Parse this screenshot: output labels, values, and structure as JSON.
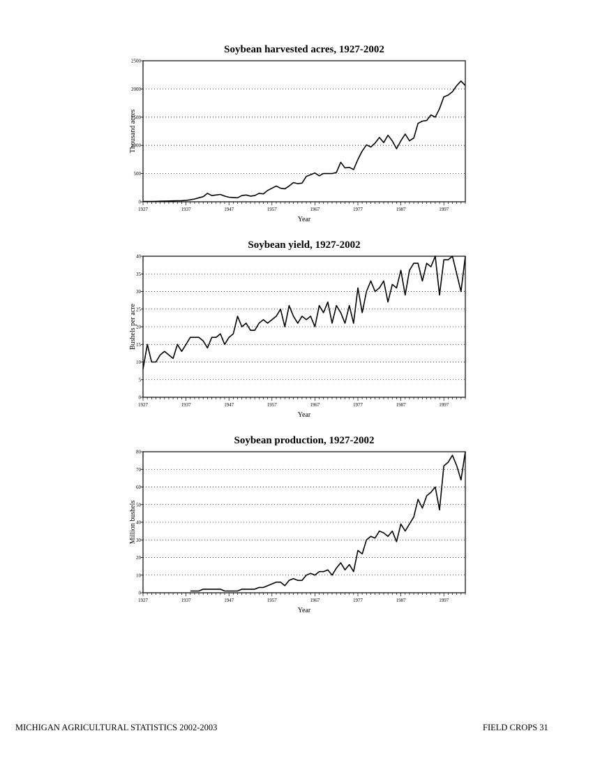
{
  "footer": {
    "left": "MICHIGAN AGRICULTURAL STATISTICS 2002-2003",
    "right": "FIELD CROPS  31"
  },
  "chart_data": [
    {
      "type": "line",
      "title": "Soybean harvested acres, 1927-2002",
      "xlabel": "Year",
      "ylabel": "Thousand acres",
      "xlim": [
        1927,
        2002
      ],
      "ylim": [
        0,
        2500
      ],
      "yticks": [
        0,
        500,
        1000,
        1500,
        2000,
        2500
      ],
      "xtick_labels": [
        1927,
        1937,
        1947,
        1957,
        1967,
        1977,
        1987,
        1997
      ],
      "grid": "horizontal-dotted",
      "series": [
        {
          "x": [
            1927,
            1928,
            1929,
            1930,
            1931,
            1932,
            1933,
            1934,
            1935,
            1936,
            1937,
            1938,
            1939,
            1940,
            1941,
            1942,
            1943,
            1944,
            1945,
            1946,
            1947,
            1948,
            1949,
            1950,
            1951,
            1952,
            1953,
            1954,
            1955,
            1956,
            1957,
            1958,
            1959,
            1960,
            1961,
            1962,
            1963,
            1964,
            1965,
            1966,
            1967,
            1968,
            1969,
            1970,
            1971,
            1972,
            1973,
            1974,
            1975,
            1976,
            1977,
            1978,
            1979,
            1980,
            1981,
            1982,
            1983,
            1984,
            1985,
            1986,
            1987,
            1988,
            1989,
            1990,
            1991,
            1992,
            1993,
            1994,
            1995,
            1996,
            1997,
            1998,
            1999,
            2000,
            2001,
            2002
          ],
          "values": [
            5,
            5,
            5,
            8,
            10,
            12,
            14,
            16,
            18,
            20,
            25,
            35,
            50,
            70,
            90,
            150,
            110,
            120,
            130,
            100,
            80,
            75,
            70,
            110,
            120,
            100,
            110,
            150,
            140,
            200,
            240,
            280,
            240,
            230,
            280,
            340,
            320,
            330,
            450,
            480,
            510,
            460,
            500,
            500,
            500,
            520,
            700,
            600,
            610,
            570,
            750,
            900,
            1010,
            970,
            1040,
            1140,
            1050,
            1180,
            1080,
            940,
            1080,
            1200,
            1080,
            1130,
            1390,
            1430,
            1440,
            1540,
            1500,
            1650,
            1860,
            1890,
            1950,
            2060,
            2140,
            2060
          ]
        }
      ]
    },
    {
      "type": "line",
      "title": "Soybean yield, 1927-2002",
      "xlabel": "Year",
      "ylabel": "Bushels per acre",
      "xlim": [
        1927,
        2002
      ],
      "ylim": [
        0,
        40
      ],
      "yticks": [
        0,
        5,
        10,
        15,
        20,
        25,
        30,
        35,
        40
      ],
      "xtick_labels": [
        1927,
        1937,
        1947,
        1957,
        1967,
        1977,
        1987,
        1997
      ],
      "grid": "horizontal-dotted",
      "series": [
        {
          "x": [
            1927,
            1928,
            1929,
            1930,
            1931,
            1932,
            1933,
            1934,
            1935,
            1936,
            1937,
            1938,
            1939,
            1940,
            1941,
            1942,
            1943,
            1944,
            1945,
            1946,
            1947,
            1948,
            1949,
            1950,
            1951,
            1952,
            1953,
            1954,
            1955,
            1956,
            1957,
            1958,
            1959,
            1960,
            1961,
            1962,
            1963,
            1964,
            1965,
            1966,
            1967,
            1968,
            1969,
            1970,
            1971,
            1972,
            1973,
            1974,
            1975,
            1976,
            1977,
            1978,
            1979,
            1980,
            1981,
            1982,
            1983,
            1984,
            1985,
            1986,
            1987,
            1988,
            1989,
            1990,
            1991,
            1992,
            1993,
            1994,
            1995,
            1996,
            1997,
            1998,
            1999,
            2000,
            2001,
            2002
          ],
          "values": [
            8,
            15,
            10,
            10,
            12,
            13,
            12,
            11,
            15,
            13,
            15,
            17,
            17,
            17,
            16,
            14,
            17,
            17,
            18,
            15,
            17,
            18,
            23,
            20,
            21,
            19,
            19,
            21,
            22,
            21,
            22,
            23,
            25,
            20,
            26,
            23,
            21,
            23,
            22,
            23,
            20,
            26,
            24,
            27,
            21,
            26,
            24,
            21,
            26,
            21,
            31,
            24,
            30,
            33,
            30,
            31,
            33,
            27,
            32,
            31,
            36,
            29,
            36,
            38,
            38,
            33,
            38,
            37,
            40,
            29,
            39,
            39,
            40,
            35,
            30,
            40
          ]
        }
      ]
    },
    {
      "type": "line",
      "title": "Soybean production, 1927-2002",
      "xlabel": "Year",
      "ylabel": "Million bushels",
      "xlim": [
        1927,
        2002
      ],
      "ylim": [
        0,
        80
      ],
      "yticks": [
        0,
        10,
        20,
        30,
        40,
        50,
        60,
        70,
        80
      ],
      "xtick_labels": [
        1927,
        1937,
        1947,
        1957,
        1967,
        1977,
        1987,
        1997
      ],
      "grid": "horizontal-dotted",
      "series": [
        {
          "x": [
            1938,
            1939,
            1940,
            1941,
            1942,
            1943,
            1944,
            1945,
            1946,
            1947,
            1948,
            1949,
            1950,
            1951,
            1952,
            1953,
            1954,
            1955,
            1956,
            1957,
            1958,
            1959,
            1960,
            1961,
            1962,
            1963,
            1964,
            1965,
            1966,
            1967,
            1968,
            1969,
            1970,
            1971,
            1972,
            1973,
            1974,
            1975,
            1976,
            1977,
            1978,
            1979,
            1980,
            1981,
            1982,
            1983,
            1984,
            1985,
            1986,
            1987,
            1988,
            1989,
            1990,
            1991,
            1992,
            1993,
            1994,
            1995,
            1996,
            1997,
            1998,
            1999,
            2000,
            2001,
            2002
          ],
          "values": [
            1,
            1,
            1,
            2,
            2,
            2,
            2,
            2,
            1,
            1,
            1,
            1,
            2,
            2,
            2,
            2,
            3,
            3,
            4,
            5,
            6,
            6,
            4,
            7,
            8,
            7,
            7,
            10,
            11,
            10,
            12,
            12,
            13,
            10,
            14,
            17,
            13,
            16,
            12,
            24,
            22,
            30,
            32,
            31,
            35,
            34,
            32,
            35,
            29,
            39,
            35,
            39,
            43,
            53,
            48,
            55,
            57,
            60,
            47,
            72,
            74,
            78,
            72,
            64,
            80
          ]
        }
      ]
    }
  ]
}
